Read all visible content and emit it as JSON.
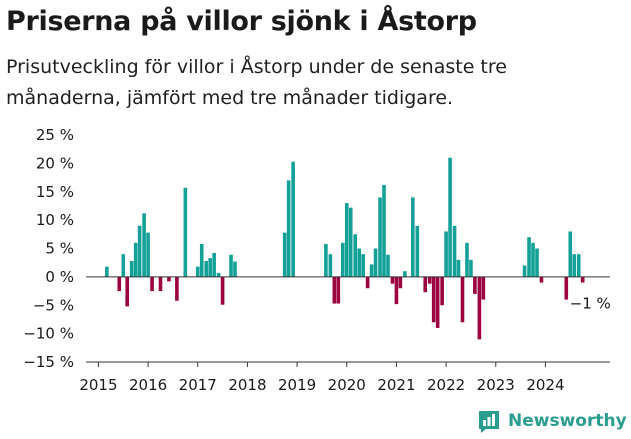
{
  "header": {
    "title": "Priserna på villor sjönk i Åstorp",
    "subtitle": "Prisutveckling för villor i Åstorp under de senaste tre månaderna, jämfört med tre månader tidigare."
  },
  "brand": {
    "name": "Newsworthy",
    "logo_icon": "bar-chart-icon"
  },
  "colors": {
    "positive": "#13a097",
    "negative": "#9b0440",
    "text": "#1a1a1a",
    "axis": "#333333"
  },
  "chart_data": {
    "type": "bar",
    "title": "Priserna på villor sjönk i Åstorp",
    "ylim": [
      -15,
      25
    ],
    "yticks": [
      -15,
      -10,
      -5,
      0,
      5,
      10,
      15,
      20,
      25
    ],
    "ytick_labels": [
      "−15 %",
      "−10 %",
      "−5 %",
      "0 %",
      "5 %",
      "10 %",
      "15 %",
      "20 %",
      "25 %"
    ],
    "xlim": [
      2014.75,
      2025.3
    ],
    "xticks": [
      2015,
      2016,
      2017,
      2018,
      2019,
      2020,
      2021,
      2022,
      2023,
      2024
    ],
    "xtick_labels": [
      "2015",
      "2016",
      "2017",
      "2018",
      "2019",
      "2020",
      "2021",
      "2022",
      "2023",
      "2024"
    ],
    "annotation": {
      "text": "−1 %",
      "x": 2024.75,
      "y": -1
    },
    "series": [
      {
        "name": "Prisutveckling",
        "x": [
          2015.17,
          2015.42,
          2015.5,
          2015.58,
          2015.67,
          2015.75,
          2015.83,
          2015.92,
          2016.0,
          2016.08,
          2016.25,
          2016.42,
          2016.58,
          2016.75,
          2017.0,
          2017.08,
          2017.17,
          2017.25,
          2017.33,
          2017.42,
          2017.5,
          2017.67,
          2017.75,
          2018.75,
          2018.83,
          2018.92,
          2019.58,
          2019.67,
          2019.75,
          2019.83,
          2019.92,
          2020.0,
          2020.08,
          2020.17,
          2020.25,
          2020.33,
          2020.42,
          2020.5,
          2020.58,
          2020.67,
          2020.75,
          2020.83,
          2020.92,
          2021.0,
          2021.08,
          2021.17,
          2021.33,
          2021.42,
          2021.58,
          2021.67,
          2021.75,
          2021.83,
          2021.92,
          2022.0,
          2022.08,
          2022.17,
          2022.25,
          2022.33,
          2022.42,
          2022.5,
          2022.58,
          2022.67,
          2022.75,
          2023.58,
          2023.67,
          2023.75,
          2023.83,
          2023.92,
          2024.42,
          2024.5,
          2024.58,
          2024.67,
          2024.75
        ],
        "values": [
          1.8,
          -2.5,
          4.0,
          -5.2,
          2.8,
          6.0,
          9.0,
          11.2,
          7.8,
          -2.5,
          -2.5,
          -0.8,
          -4.2,
          15.7,
          1.8,
          5.8,
          2.8,
          3.3,
          4.2,
          0.7,
          -4.9,
          3.9,
          2.7,
          7.8,
          17.0,
          20.3,
          5.8,
          4.0,
          -4.7,
          -4.7,
          6.0,
          13.0,
          12.2,
          7.5,
          5.0,
          4.0,
          -2.0,
          2.2,
          5.0,
          14.0,
          16.2,
          3.9,
          -1.2,
          -4.8,
          -2.0,
          1.0,
          14.0,
          9.0,
          -2.7,
          -1.2,
          -8.0,
          -9.0,
          -5.0,
          8.0,
          21.0,
          9.0,
          3.0,
          -8.0,
          6.0,
          3.0,
          -3.0,
          -11.0,
          -4.0,
          2.0,
          7.0,
          6.0,
          5.0,
          -1.0,
          -4.0,
          8.0,
          4.0,
          4.0,
          -1.0
        ]
      }
    ]
  }
}
